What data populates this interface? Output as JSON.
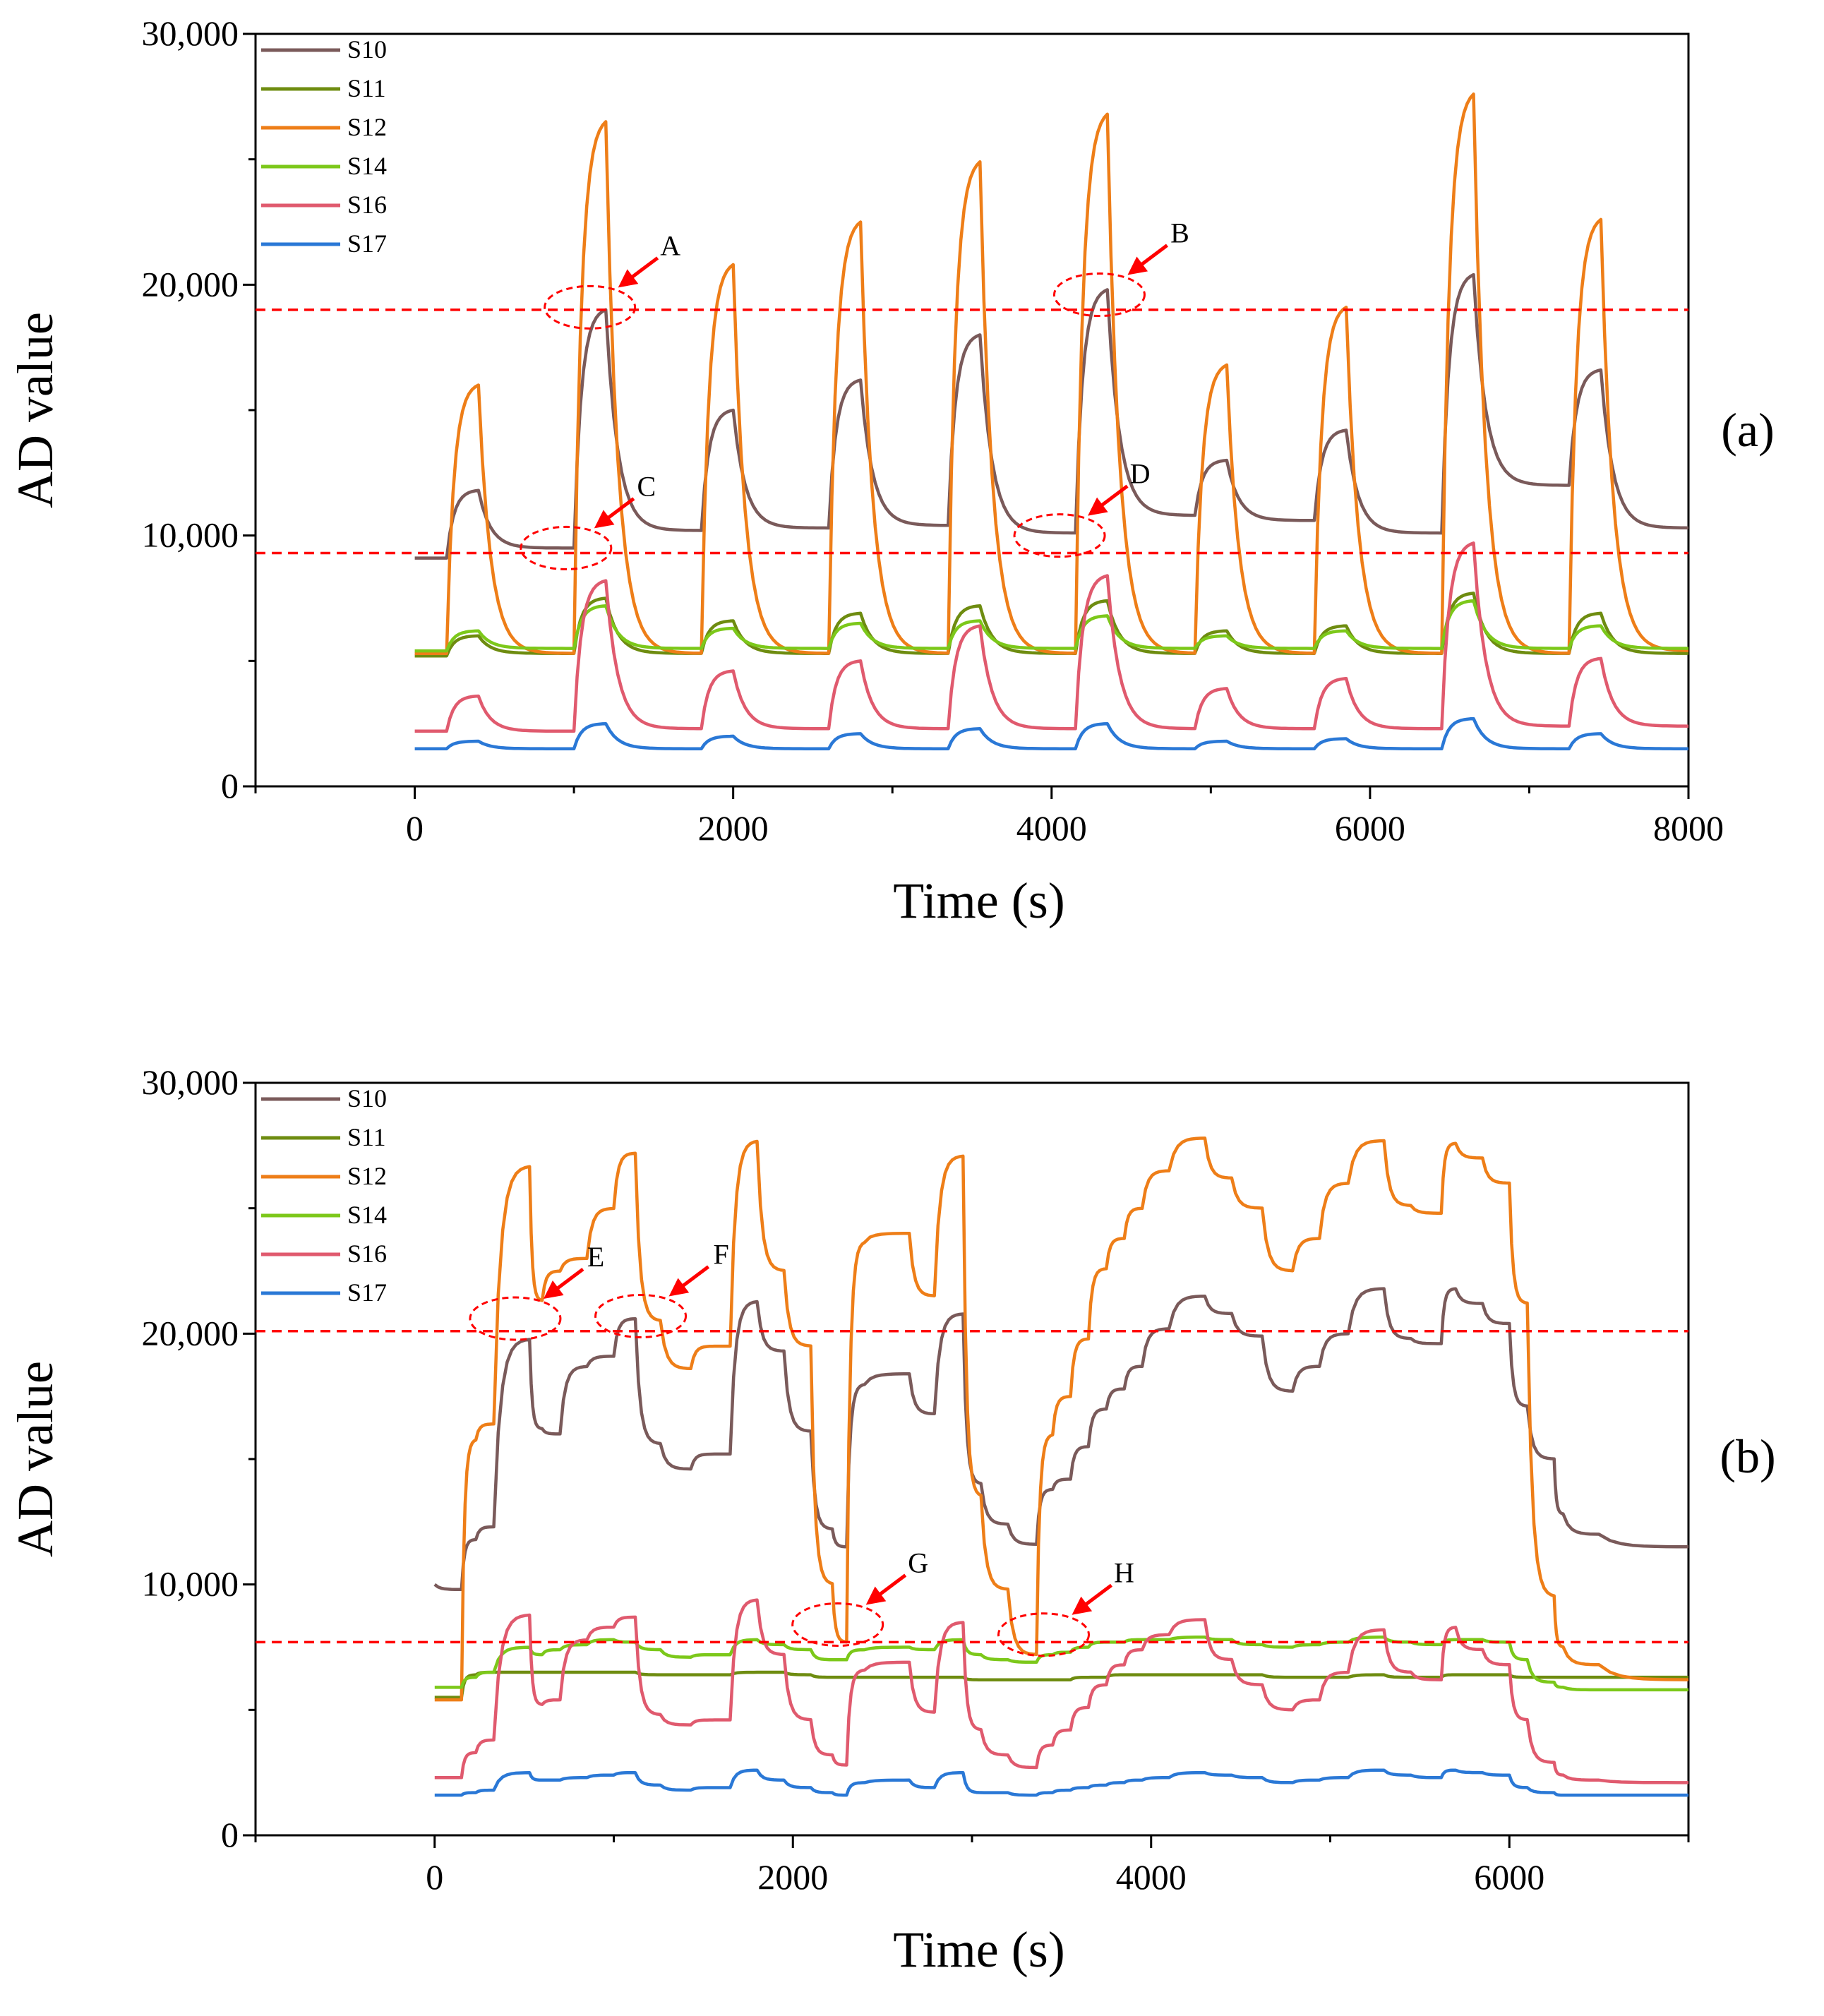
{
  "chart_data": [
    {
      "panel": "(a)",
      "type": "line",
      "title": "",
      "xlabel": "Time (s)",
      "ylabel": "AD value",
      "xlim": [
        -1000,
        8000
      ],
      "ylim": [
        0,
        30000
      ],
      "xticks": [
        0,
        2000,
        4000,
        6000,
        8000
      ],
      "xtick_labels": [
        "0",
        "2000",
        "4000",
        "6000",
        "8000"
      ],
      "yticks": [
        0,
        10000,
        20000,
        30000
      ],
      "ytick_labels": [
        "0",
        "10,000",
        "20,000",
        "30,000"
      ],
      "legend_position": "top-left",
      "threshold_lines": [
        19000,
        9300
      ],
      "pulse_starts": [
        200,
        1000,
        1800,
        2600,
        3350,
        4150,
        4900,
        5650,
        6450,
        7250
      ],
      "pulse_length": 200,
      "series": [
        {
          "name": "S10",
          "color": "#7a5a5a",
          "baseline": 9100,
          "levels": [
            9500,
            10200,
            10300,
            10400,
            10100,
            10800,
            10600,
            10100,
            12000,
            11500
          ],
          "peaks": [
            11800,
            19000,
            15000,
            16200,
            18000,
            19800,
            13000,
            14200,
            20400,
            16600
          ],
          "end": 10300
        },
        {
          "name": "S11",
          "color": "#6e8c10",
          "baseline": 5200,
          "levels": [
            5300,
            5300,
            5300,
            5300,
            5300,
            5300,
            5300,
            5300,
            5300,
            5300
          ],
          "peaks": [
            6000,
            7500,
            6600,
            6900,
            7200,
            7400,
            6200,
            6400,
            7700,
            6900
          ],
          "end": 5300
        },
        {
          "name": "S12",
          "color": "#ee7e18",
          "baseline": 5300,
          "levels": [
            5300,
            5300,
            5300,
            5300,
            5300,
            5300,
            5300,
            5300,
            5300,
            5300
          ],
          "peaks": [
            16000,
            26500,
            20800,
            22500,
            24900,
            26800,
            16800,
            19100,
            27600,
            22600
          ],
          "end": 5400
        },
        {
          "name": "S14",
          "color": "#7cc81a",
          "baseline": 5400,
          "levels": [
            5500,
            5500,
            5500,
            5500,
            5500,
            5500,
            5500,
            5500,
            5500,
            5500
          ],
          "peaks": [
            6200,
            7200,
            6300,
            6500,
            6600,
            6800,
            6000,
            6200,
            7400,
            6400
          ],
          "end": 5500
        },
        {
          "name": "S16",
          "color": "#e05a6e",
          "baseline": 2200,
          "levels": [
            2200,
            2300,
            2300,
            2300,
            2300,
            2300,
            2300,
            2300,
            2400,
            2300
          ],
          "peaks": [
            3600,
            8200,
            4600,
            5000,
            6400,
            8400,
            3900,
            4300,
            9700,
            5100
          ],
          "end": 2400
        },
        {
          "name": "S17",
          "color": "#2a78d6",
          "baseline": 1500,
          "levels": [
            1500,
            1500,
            1500,
            1500,
            1500,
            1500,
            1500,
            1500,
            1500,
            1500
          ],
          "peaks": [
            1800,
            2500,
            2000,
            2100,
            2300,
            2500,
            1800,
            1900,
            2700,
            2100
          ],
          "end": 1500
        }
      ],
      "annotations": [
        {
          "label": "A",
          "x": 1100,
          "y": 19100
        },
        {
          "label": "B",
          "x": 4300,
          "y": 19600
        },
        {
          "label": "C",
          "x": 950,
          "y": 9500
        },
        {
          "label": "D",
          "x": 4050,
          "y": 10000
        }
      ]
    },
    {
      "panel": "(b)",
      "type": "line",
      "title": "",
      "xlabel": "Time (s)",
      "ylabel": "AD value",
      "xlim": [
        -1000,
        7000
      ],
      "ylim": [
        0,
        30000
      ],
      "xticks": [
        0,
        2000,
        4000,
        6000
      ],
      "xtick_labels": [
        "0",
        "2000",
        "4000",
        "6000"
      ],
      "yticks": [
        0,
        10000,
        20000,
        30000
      ],
      "ytick_labels": [
        "0",
        "10,000",
        "20,000",
        "30,000"
      ],
      "legend_position": "top-left",
      "threshold_lines": [
        20100,
        7700
      ],
      "step_times": [
        0,
        150,
        230,
        330,
        530,
        600,
        700,
        850,
        1000,
        1120,
        1260,
        1430,
        1550,
        1650,
        1800,
        1950,
        2100,
        2220,
        2300,
        2400,
        2650,
        2790,
        2950,
        3050,
        3200,
        3360,
        3450,
        3550,
        3650,
        3750,
        3850,
        3950,
        4100,
        4300,
        4450,
        4620,
        4790,
        4940,
        5100,
        5300,
        5450,
        5620,
        5700,
        5850,
        6000,
        6100,
        6250,
        6300,
        6500,
        7000
      ],
      "series": [
        {
          "name": "S10",
          "color": "#7a5a5a",
          "values": [
            10000,
            9800,
            11800,
            12300,
            19800,
            16200,
            16000,
            18700,
            19100,
            20600,
            15600,
            14600,
            15200,
            15200,
            21300,
            19300,
            16100,
            12200,
            11500,
            18000,
            18400,
            16800,
            20800,
            14000,
            12400,
            11600,
            13800,
            14200,
            15500,
            17000,
            17800,
            18700,
            20200,
            21500,
            20800,
            19900,
            17700,
            18700,
            20000,
            21800,
            19800,
            19600,
            21800,
            21200,
            20400,
            17100,
            15000,
            12800,
            12000,
            11500
          ]
        },
        {
          "name": "S11",
          "color": "#6e8c10",
          "values": [
            5500,
            5500,
            6400,
            6500,
            6500,
            6500,
            6500,
            6500,
            6500,
            6500,
            6400,
            6400,
            6400,
            6400,
            6500,
            6500,
            6400,
            6300,
            6300,
            6300,
            6300,
            6300,
            6300,
            6200,
            6200,
            6200,
            6200,
            6200,
            6300,
            6300,
            6400,
            6400,
            6400,
            6400,
            6400,
            6400,
            6300,
            6300,
            6300,
            6400,
            6300,
            6300,
            6400,
            6400,
            6400,
            6300,
            6300,
            6300,
            6300,
            6300
          ]
        },
        {
          "name": "S12",
          "color": "#ee7e18",
          "values": [
            5400,
            5400,
            15800,
            16400,
            26700,
            21300,
            22500,
            23000,
            25000,
            27200,
            20500,
            18600,
            19500,
            19500,
            27700,
            22500,
            19500,
            10000,
            7700,
            23700,
            24000,
            21500,
            27100,
            13500,
            9800,
            7200,
            16000,
            17500,
            19800,
            22600,
            23800,
            25000,
            26500,
            27800,
            26200,
            25000,
            22500,
            23800,
            26000,
            27700,
            25100,
            24800,
            27600,
            27000,
            26000,
            21200,
            9500,
            7500,
            6800,
            6200
          ]
        },
        {
          "name": "S14",
          "color": "#7cc81a",
          "values": [
            5900,
            5900,
            6300,
            6500,
            7500,
            7200,
            7400,
            7600,
            7800,
            7700,
            7400,
            7100,
            7200,
            7200,
            7800,
            7600,
            7400,
            7000,
            7000,
            7400,
            7500,
            7400,
            7800,
            7200,
            7000,
            6900,
            7200,
            7300,
            7500,
            7700,
            7700,
            7800,
            7800,
            7900,
            7800,
            7600,
            7500,
            7600,
            7700,
            7900,
            7700,
            7600,
            7800,
            7800,
            7700,
            7000,
            6100,
            5900,
            5800,
            5800
          ]
        },
        {
          "name": "S16",
          "color": "#e05a6e",
          "values": [
            2300,
            2300,
            3300,
            3800,
            8800,
            5200,
            5400,
            7800,
            8300,
            8700,
            4800,
            4400,
            4600,
            4600,
            9400,
            7200,
            4600,
            3200,
            2800,
            6600,
            6900,
            4900,
            8500,
            4200,
            3200,
            2700,
            3600,
            4200,
            5100,
            6000,
            6800,
            7400,
            8000,
            8600,
            7000,
            6000,
            5000,
            5400,
            6500,
            8200,
            6500,
            6200,
            8300,
            7400,
            6800,
            4600,
            2900,
            2400,
            2200,
            2100
          ]
        },
        {
          "name": "S17",
          "color": "#2a78d6",
          "values": [
            1600,
            1600,
            1700,
            1800,
            2500,
            2200,
            2200,
            2300,
            2400,
            2500,
            2000,
            1800,
            1900,
            1900,
            2600,
            2200,
            1900,
            1700,
            1600,
            2100,
            2200,
            1900,
            2500,
            1700,
            1700,
            1600,
            1700,
            1800,
            1900,
            2000,
            2100,
            2200,
            2300,
            2500,
            2400,
            2300,
            2100,
            2200,
            2300,
            2600,
            2400,
            2300,
            2600,
            2500,
            2400,
            1900,
            1700,
            1600,
            1600,
            1600
          ]
        }
      ],
      "annotations": [
        {
          "label": "E",
          "x": 450,
          "y": 20600
        },
        {
          "label": "F",
          "x": 1150,
          "y": 20700
        },
        {
          "label": "G",
          "x": 2250,
          "y": 8400
        },
        {
          "label": "H",
          "x": 3400,
          "y": 8000
        }
      ]
    }
  ]
}
